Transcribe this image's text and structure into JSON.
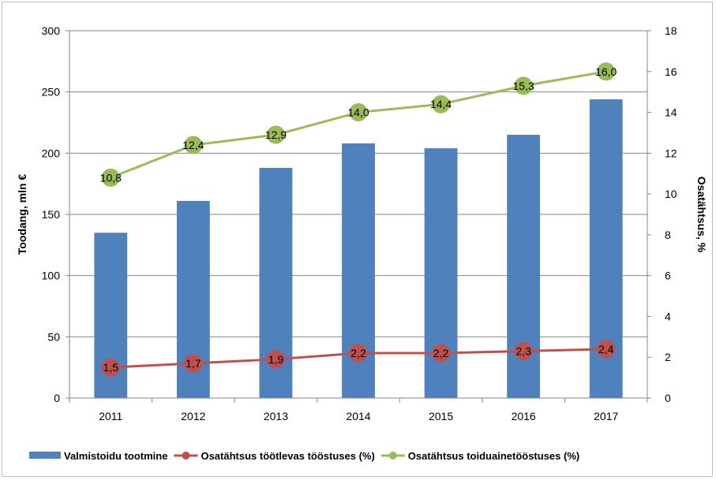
{
  "chart_data": {
    "type": "bar",
    "categories": [
      "2011",
      "2012",
      "2013",
      "2014",
      "2015",
      "2016",
      "2017"
    ],
    "series": [
      {
        "name": "Valmistoidu tootmine",
        "kind": "bar",
        "axis": "left",
        "color": "#4f81bd",
        "values": [
          135,
          161,
          188,
          208,
          204,
          215,
          244
        ]
      },
      {
        "name": "Osatähtsus töötlevas tööstuses (%)",
        "kind": "line",
        "axis": "right",
        "color": "#c0504d",
        "values": [
          1.5,
          1.7,
          1.9,
          2.2,
          2.2,
          2.3,
          2.4
        ],
        "labels": [
          "1,5",
          "1,7",
          "1,9",
          "2,2",
          "2,2",
          "2,3",
          "2,4"
        ]
      },
      {
        "name": "Osatähtsus toiduainetööstuses (%)",
        "kind": "line",
        "axis": "right",
        "color": "#9bbb59",
        "values": [
          10.8,
          12.4,
          12.9,
          14.0,
          14.4,
          15.3,
          16.0
        ],
        "labels": [
          "10,8",
          "12,4",
          "12,9",
          "14,0",
          "14,4",
          "15,3",
          "16,0"
        ]
      }
    ],
    "ylabel": "Toodang, mln €",
    "y2label": "Osatähtsus, %",
    "ylim": [
      0,
      300
    ],
    "y2lim": [
      0,
      18
    ],
    "yticks": [
      "0",
      "50",
      "100",
      "150",
      "200",
      "250",
      "300"
    ],
    "y2ticks": [
      "0",
      "2",
      "4",
      "6",
      "8",
      "10",
      "12",
      "14",
      "16",
      "18"
    ],
    "grid": true,
    "legend": "bottom"
  }
}
